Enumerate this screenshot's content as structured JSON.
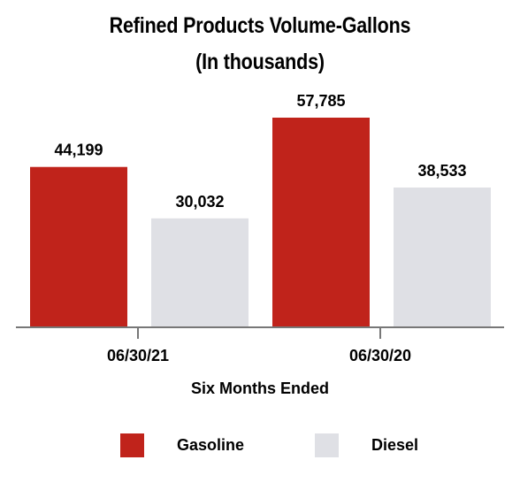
{
  "chart_data": {
    "type": "bar",
    "title_lines": [
      "Refined Products Volume-Gallons",
      "(In thousands)"
    ],
    "xlabel": "Six Months Ended",
    "ylabel": "",
    "categories": [
      "06/30/21",
      "06/30/20"
    ],
    "series": [
      {
        "name": "Gasoline",
        "color": "#c0231b",
        "values": [
          44199,
          57785
        ],
        "labels": [
          "44,199",
          "57,785"
        ]
      },
      {
        "name": "Diesel",
        "color": "#dfe0e5",
        "values": [
          30032,
          38533
        ],
        "labels": [
          "30,032",
          "38,533"
        ]
      }
    ],
    "ylim": [
      0,
      57785
    ],
    "grid": false,
    "legend": "bottom"
  }
}
